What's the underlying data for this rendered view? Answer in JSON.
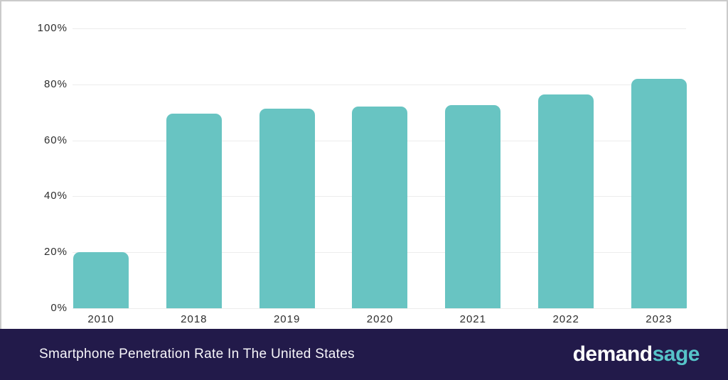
{
  "chart_data": {
    "type": "bar",
    "title": "Smartphone Penetration Rate In The United States",
    "categories": [
      "2010",
      "2018",
      "2019",
      "2020",
      "2021",
      "2022",
      "2023"
    ],
    "values": [
      20,
      69.5,
      71.2,
      72.2,
      72.6,
      76.4,
      82
    ],
    "xlabel": "",
    "ylabel": "",
    "ylim": [
      0,
      100
    ],
    "ytick_values": [
      0,
      20,
      40,
      60,
      80,
      100
    ],
    "ytick_labels": [
      "0%",
      "20%",
      "40%",
      "60%",
      "80%",
      "100%"
    ],
    "grid": true,
    "legend": "none",
    "bar_color": "#68c4c2",
    "gridline_color": "#ececec",
    "tick_text_color": "#2d2d2d"
  },
  "footer": {
    "title": "Smartphone Penetration Rate In The United States",
    "background": "#221a4a",
    "logo": {
      "part1": "demand",
      "part2": "sage",
      "part1_color": "#ffffff",
      "part2_color": "#56c3c8"
    }
  }
}
